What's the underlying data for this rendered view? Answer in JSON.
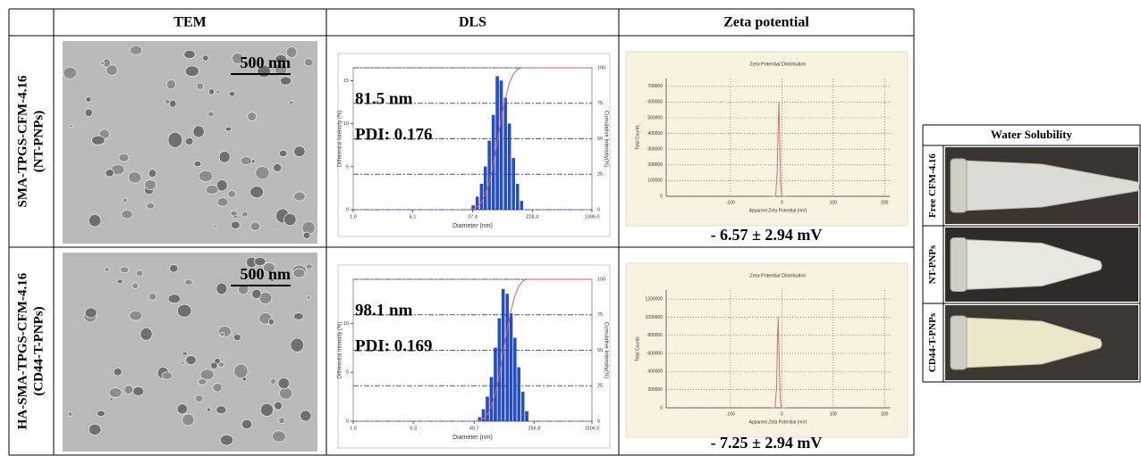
{
  "header": {
    "columns": [
      "TEM",
      "DLS",
      "Zeta potential"
    ]
  },
  "rows": [
    {
      "label": [
        "SMA-TPGS-CFM-4.16",
        "(NT-PNPs)"
      ],
      "tem": {
        "scale_bar": "500 nm"
      },
      "dls": {
        "type": "bar",
        "size_label": "81.5 nm",
        "pdi_label": "PDI: 0.176",
        "ylabel": "Differential Intensity (%)",
        "y2label": "Cumulative Intensity(%)",
        "xlabel": "Diameter (nm)",
        "log_x": true,
        "xlim": [
          1,
          1396
        ],
        "xticks": [
          {
            "value": 1,
            "label": "1.0"
          },
          {
            "value": 6.1,
            "label": "6.1"
          },
          {
            "value": 37.4,
            "label": "37.4"
          },
          {
            "value": 228.4,
            "label": "228.4"
          },
          {
            "value": 1396,
            "label": "1396.0"
          }
        ],
        "ylim": [
          0,
          16.5
        ],
        "yticks": [
          0,
          5,
          10,
          15
        ],
        "y2lim": [
          0,
          100
        ],
        "y2ticks": [
          0,
          25,
          50,
          75,
          100
        ],
        "x": [
          38,
          43,
          49,
          55,
          62,
          70,
          79,
          89,
          101,
          114,
          129,
          146,
          165
        ],
        "values": [
          0.5,
          1.5,
          3,
          5,
          8,
          11,
          15.5,
          15,
          13,
          10,
          6,
          3,
          1
        ],
        "color": "#1f4fd0",
        "cumulative_color": "#e05a5a"
      },
      "zeta": {
        "type": "line",
        "title": "Zeta Potential Distribution",
        "ylabel": "Total Counts",
        "xlabel": "Apparent Zeta Potential (mV)",
        "xlim": [
          -225,
          210
        ],
        "xticks": [
          -100,
          0,
          100,
          200
        ],
        "ylim": [
          0,
          750000
        ],
        "yticks": [
          0,
          100000,
          200000,
          300000,
          400000,
          500000,
          600000,
          700000
        ],
        "grid": true,
        "x": [
          -20,
          -12,
          -9,
          -7,
          -5.5,
          -4,
          -2,
          0,
          10
        ],
        "values": [
          0,
          0,
          150000,
          450000,
          600000,
          350000,
          60000,
          0,
          0
        ],
        "color": "#d07070"
      },
      "zeta_value": "- 6.57 ± 2.94 mV"
    },
    {
      "label": [
        "HA-SMA-TPGS-CFM-4.16",
        "(CD44-T-PNPs)"
      ],
      "tem": {
        "scale_bar": "500 nm"
      },
      "dls": {
        "type": "bar",
        "size_label": "98.1 nm",
        "pdi_label": "PDI: 0.169",
        "ylabel": "Differential Intensity (%)",
        "y2label": "Cumulative Intensity(%)",
        "xlabel": "Diameter (nm)",
        "log_x": true,
        "xlim": [
          1,
          1506
        ],
        "xticks": [
          {
            "value": 1,
            "label": "1.0"
          },
          {
            "value": 6.3,
            "label": "6.3"
          },
          {
            "value": 40.7,
            "label": "40.7"
          },
          {
            "value": 256.8,
            "label": "256.8"
          },
          {
            "value": 1506,
            "label": "1506.0"
          }
        ],
        "ylim": [
          0,
          14.5
        ],
        "yticks": [
          0,
          5,
          10
        ],
        "y2lim": [
          0,
          100
        ],
        "y2ticks": [
          0,
          25,
          50,
          75,
          100
        ],
        "x": [
          48,
          54,
          61,
          69,
          78,
          88,
          99,
          112,
          126,
          142,
          160,
          181,
          204
        ],
        "values": [
          0.4,
          1.2,
          2.5,
          4.5,
          7.5,
          10.5,
          13.5,
          13,
          11,
          8.5,
          5.5,
          3,
          1
        ],
        "color": "#1f4fd0",
        "cumulative_color": "#e05a5a"
      },
      "zeta": {
        "type": "line",
        "title": "Zeta Potential Distribution",
        "ylabel": "Total Counts",
        "xlabel": "Apparent Zeta Potential (mV)",
        "xlim": [
          -225,
          210
        ],
        "xticks": [
          -100,
          0,
          100,
          200
        ],
        "ylim": [
          0,
          1300000
        ],
        "yticks": [
          0,
          200000,
          400000,
          600000,
          800000,
          1000000,
          1200000
        ],
        "grid": true,
        "x": [
          -20,
          -13,
          -10,
          -8.5,
          -7,
          -5.5,
          -3,
          -1,
          10
        ],
        "values": [
          0,
          0,
          250000,
          750000,
          1000000,
          600000,
          100000,
          0,
          0
        ],
        "color": "#d07070"
      },
      "zeta_value": "- 7.25 ± 2.94 mV"
    }
  ],
  "side_table": {
    "title": "Water Solubility",
    "rows": [
      "Free CFM-4.16",
      "NT-PNPs",
      "CD44-T-PNPs"
    ]
  }
}
